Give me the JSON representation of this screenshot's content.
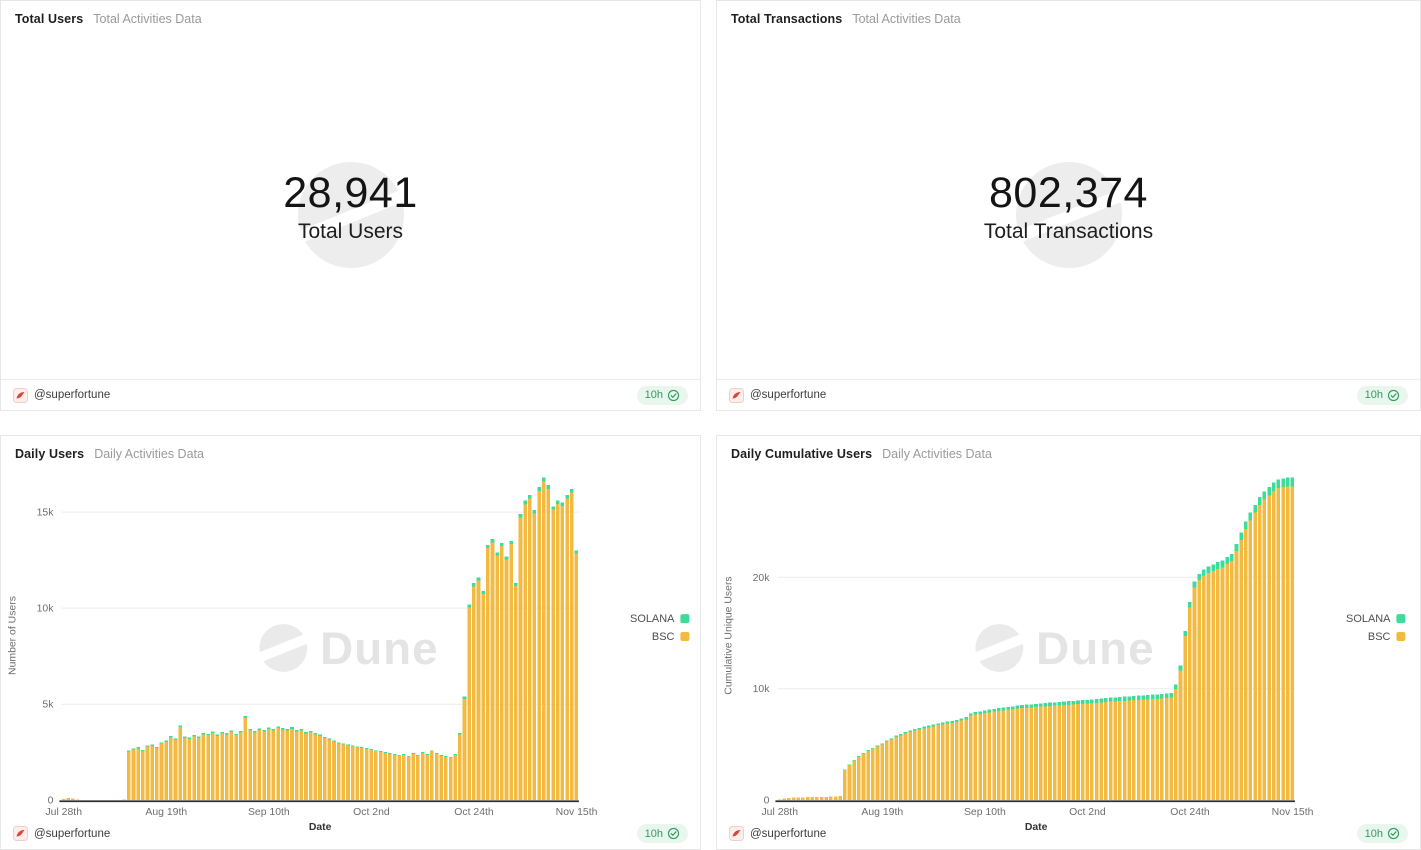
{
  "footer": {
    "author": "@superfortune",
    "badge": "10h"
  },
  "watermark": {
    "text": "Dune"
  },
  "colors": {
    "bsc": "#F2BA41",
    "solana": "#3EDC9B",
    "badge_text": "#2f9e5f",
    "badge_bg": "#e9f6ee",
    "avatar_red": "#d8453c"
  },
  "chart_data": [
    {
      "type": "counter",
      "title": "Total Users",
      "subtitle": "Total Activities Data",
      "value": 28941,
      "display": "28,941",
      "label": "Total Users"
    },
    {
      "type": "counter",
      "title": "Total Transactions",
      "subtitle": "Total Activities Data",
      "value": 802374,
      "display": "802,374",
      "label": "Total Transactions"
    },
    {
      "type": "bar",
      "stacked": true,
      "title": "Daily Users",
      "subtitle": "Daily Activities Data",
      "xlabel": "Date",
      "ylabel": "Number of Users",
      "x_start": "Jul 28",
      "x_end": "Nov 15",
      "points": 111,
      "ylim": [
        0,
        17150
      ],
      "yticks": [
        {
          "value": 0,
          "label": "0"
        },
        {
          "value": 5000,
          "label": "5k"
        },
        {
          "value": 10000,
          "label": "10k"
        },
        {
          "value": 15000,
          "label": "15k"
        }
      ],
      "xticks": [
        {
          "index": 0,
          "label": "Jul 28th"
        },
        {
          "index": 22,
          "label": "Aug 19th"
        },
        {
          "index": 44,
          "label": "Sep 10th"
        },
        {
          "index": 66,
          "label": "Oct 2nd"
        },
        {
          "index": 88,
          "label": "Oct 24th"
        },
        {
          "index": 110,
          "label": "Nov 15th"
        }
      ],
      "legend": [
        {
          "name": "SOLANA",
          "color": "#3EDC9B"
        },
        {
          "name": "BSC",
          "color": "#F2BA41"
        }
      ],
      "totals": [
        70,
        120,
        80,
        40,
        25,
        20,
        15,
        12,
        10,
        10,
        12,
        15,
        20,
        40,
        2600,
        2700,
        2760,
        2620,
        2850,
        2900,
        2770,
        3010,
        3100,
        3340,
        3210,
        3890,
        3310,
        3260,
        3400,
        3310,
        3500,
        3460,
        3590,
        3410,
        3550,
        3500,
        3640,
        3460,
        3600,
        4380,
        3700,
        3610,
        3740,
        3660,
        3790,
        3710,
        3840,
        3750,
        3700,
        3800,
        3660,
        3710,
        3560,
        3610,
        3500,
        3410,
        3300,
        3210,
        3110,
        3010,
        2950,
        2900,
        2860,
        2800,
        2760,
        2710,
        2660,
        2600,
        2560,
        2500,
        2460,
        2410,
        2360,
        2400,
        2310,
        2450,
        2360,
        2500,
        2410,
        2600,
        2460,
        2350,
        2300,
        2260,
        2400,
        3500,
        5400,
        10200,
        11300,
        11600,
        10900,
        13300,
        13600,
        12900,
        13400,
        12700,
        13500,
        11300,
        14900,
        15600,
        15900,
        15100,
        16300,
        16800,
        16400,
        15300,
        15600,
        15500,
        15900,
        16200,
        13000
      ],
      "solana": [
        0,
        0,
        0,
        0,
        0,
        0,
        0,
        0,
        0,
        0,
        0,
        0,
        0,
        0,
        55,
        60,
        58,
        52,
        62,
        65,
        60,
        66,
        68,
        72,
        66,
        85,
        70,
        68,
        72,
        70,
        75,
        73,
        78,
        72,
        76,
        74,
        80,
        73,
        77,
        95,
        80,
        78,
        82,
        79,
        84,
        80,
        85,
        82,
        80,
        84,
        79,
        81,
        77,
        78,
        75,
        73,
        70,
        66,
        63,
        60,
        58,
        56,
        55,
        53,
        52,
        50,
        49,
        48,
        47,
        46,
        45,
        44,
        43,
        44,
        42,
        45,
        43,
        46,
        44,
        48,
        45,
        42,
        41,
        40,
        44,
        90,
        120,
        160,
        170,
        165,
        150,
        175,
        180,
        165,
        170,
        160,
        172,
        150,
        185,
        190,
        195,
        180,
        195,
        200,
        190,
        175,
        180,
        178,
        185,
        190,
        160
      ]
    },
    {
      "type": "bar",
      "stacked": true,
      "title": "Daily Cumulative Users",
      "subtitle": "Daily Activities Data",
      "xlabel": "Date",
      "ylabel": "Cumulative Unique Users",
      "x_start": "Jul 28",
      "x_end": "Nov 15",
      "points": 111,
      "ylim": [
        0,
        29550
      ],
      "yticks": [
        {
          "value": 0,
          "label": "0"
        },
        {
          "value": 10000,
          "label": "10k"
        },
        {
          "value": 20000,
          "label": "20k"
        }
      ],
      "xticks": [
        {
          "index": 0,
          "label": "Jul 28th"
        },
        {
          "index": 22,
          "label": "Aug 19th"
        },
        {
          "index": 44,
          "label": "Sep 10th"
        },
        {
          "index": 66,
          "label": "Oct 2nd"
        },
        {
          "index": 88,
          "label": "Oct 24th"
        },
        {
          "index": 110,
          "label": "Nov 15th"
        }
      ],
      "legend": [
        {
          "name": "SOLANA",
          "color": "#3EDC9B"
        },
        {
          "name": "BSC",
          "color": "#F2BA41"
        }
      ],
      "totals": [
        80,
        150,
        200,
        230,
        250,
        265,
        275,
        285,
        295,
        300,
        310,
        320,
        335,
        360,
        2750,
        3200,
        3600,
        3950,
        4250,
        4500,
        4700,
        4900,
        5100,
        5350,
        5550,
        5800,
        5950,
        6100,
        6250,
        6400,
        6500,
        6600,
        6700,
        6800,
        6900,
        6980,
        7060,
        7130,
        7200,
        7350,
        7450,
        7800,
        7900,
        7980,
        8050,
        8120,
        8200,
        8260,
        8320,
        8380,
        8430,
        8480,
        8530,
        8570,
        8610,
        8650,
        8690,
        8730,
        8760,
        8790,
        8820,
        8850,
        8880,
        8910,
        8940,
        8970,
        9000,
        9040,
        9080,
        9120,
        9160,
        9200,
        9230,
        9260,
        9290,
        9320,
        9350,
        9380,
        9410,
        9440,
        9470,
        9500,
        9530,
        9560,
        9640,
        10400,
        12100,
        15200,
        17800,
        19600,
        20300,
        20700,
        20950,
        21150,
        21350,
        21500,
        21800,
        22100,
        23000,
        24000,
        25000,
        25800,
        26500,
        27200,
        27700,
        28100,
        28500,
        28750,
        28870,
        28941,
        28941
      ],
      "solana": [
        0,
        0,
        0,
        0,
        0,
        0,
        0,
        0,
        0,
        0,
        0,
        0,
        0,
        0,
        40,
        48,
        55,
        62,
        68,
        74,
        80,
        86,
        92,
        100,
        108,
        115,
        122,
        128,
        135,
        142,
        148,
        154,
        160,
        166,
        172,
        178,
        184,
        190,
        196,
        204,
        210,
        216,
        222,
        228,
        234,
        240,
        246,
        252,
        257,
        262,
        267,
        272,
        277,
        282,
        287,
        292,
        296,
        300,
        304,
        308,
        312,
        316,
        320,
        324,
        328,
        332,
        336,
        340,
        344,
        348,
        352,
        356,
        360,
        364,
        368,
        372,
        376,
        380,
        384,
        388,
        392,
        396,
        400,
        404,
        410,
        425,
        445,
        470,
        495,
        520,
        540,
        555,
        568,
        580,
        592,
        604,
        616,
        628,
        645,
        662,
        678,
        692,
        705,
        718,
        730,
        741,
        751,
        760,
        768,
        775,
        780
      ]
    }
  ]
}
